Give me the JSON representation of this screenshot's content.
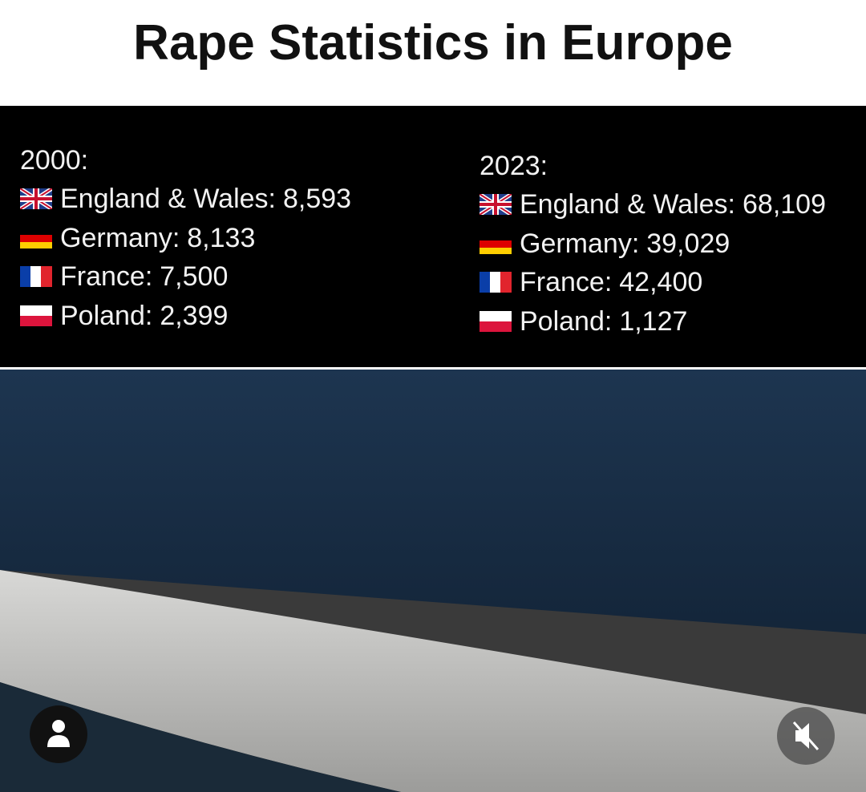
{
  "header": {
    "title": "Rape Statistics in Europe"
  },
  "columns": [
    {
      "year": "2000:",
      "rows": [
        {
          "label": "England & Wales:",
          "value": "8,593"
        },
        {
          "label": "Germany:",
          "value": "8,133"
        },
        {
          "label": "France:",
          "value": "7,500"
        },
        {
          "label": "Poland:",
          "value": "2,399"
        }
      ]
    },
    {
      "year": "2023:",
      "rows": [
        {
          "label": "England & Wales:",
          "value": "68,109"
        },
        {
          "label": "Germany:",
          "value": "39,029"
        },
        {
          "label": "France:",
          "value": "42,400"
        },
        {
          "label": "Poland:",
          "value": "1,127"
        }
      ]
    }
  ]
}
